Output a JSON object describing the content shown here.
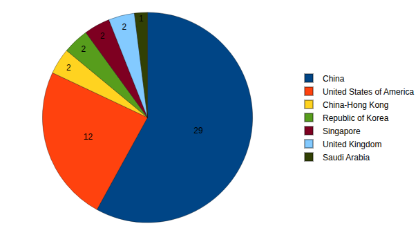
{
  "chart_data": {
    "type": "pie",
    "categories": [
      "China",
      "United States of America",
      "China-Hong Kong",
      "Republic of Korea",
      "Singapore",
      "United Kingdom",
      "Saudi Arabia"
    ],
    "values": [
      29,
      12,
      2,
      2,
      2,
      2,
      1
    ],
    "colors": [
      "#004586",
      "#ff420e",
      "#ffd320",
      "#579d1c",
      "#7e0021",
      "#83caff",
      "#314004"
    ],
    "data_labels": true,
    "legend": "right"
  }
}
